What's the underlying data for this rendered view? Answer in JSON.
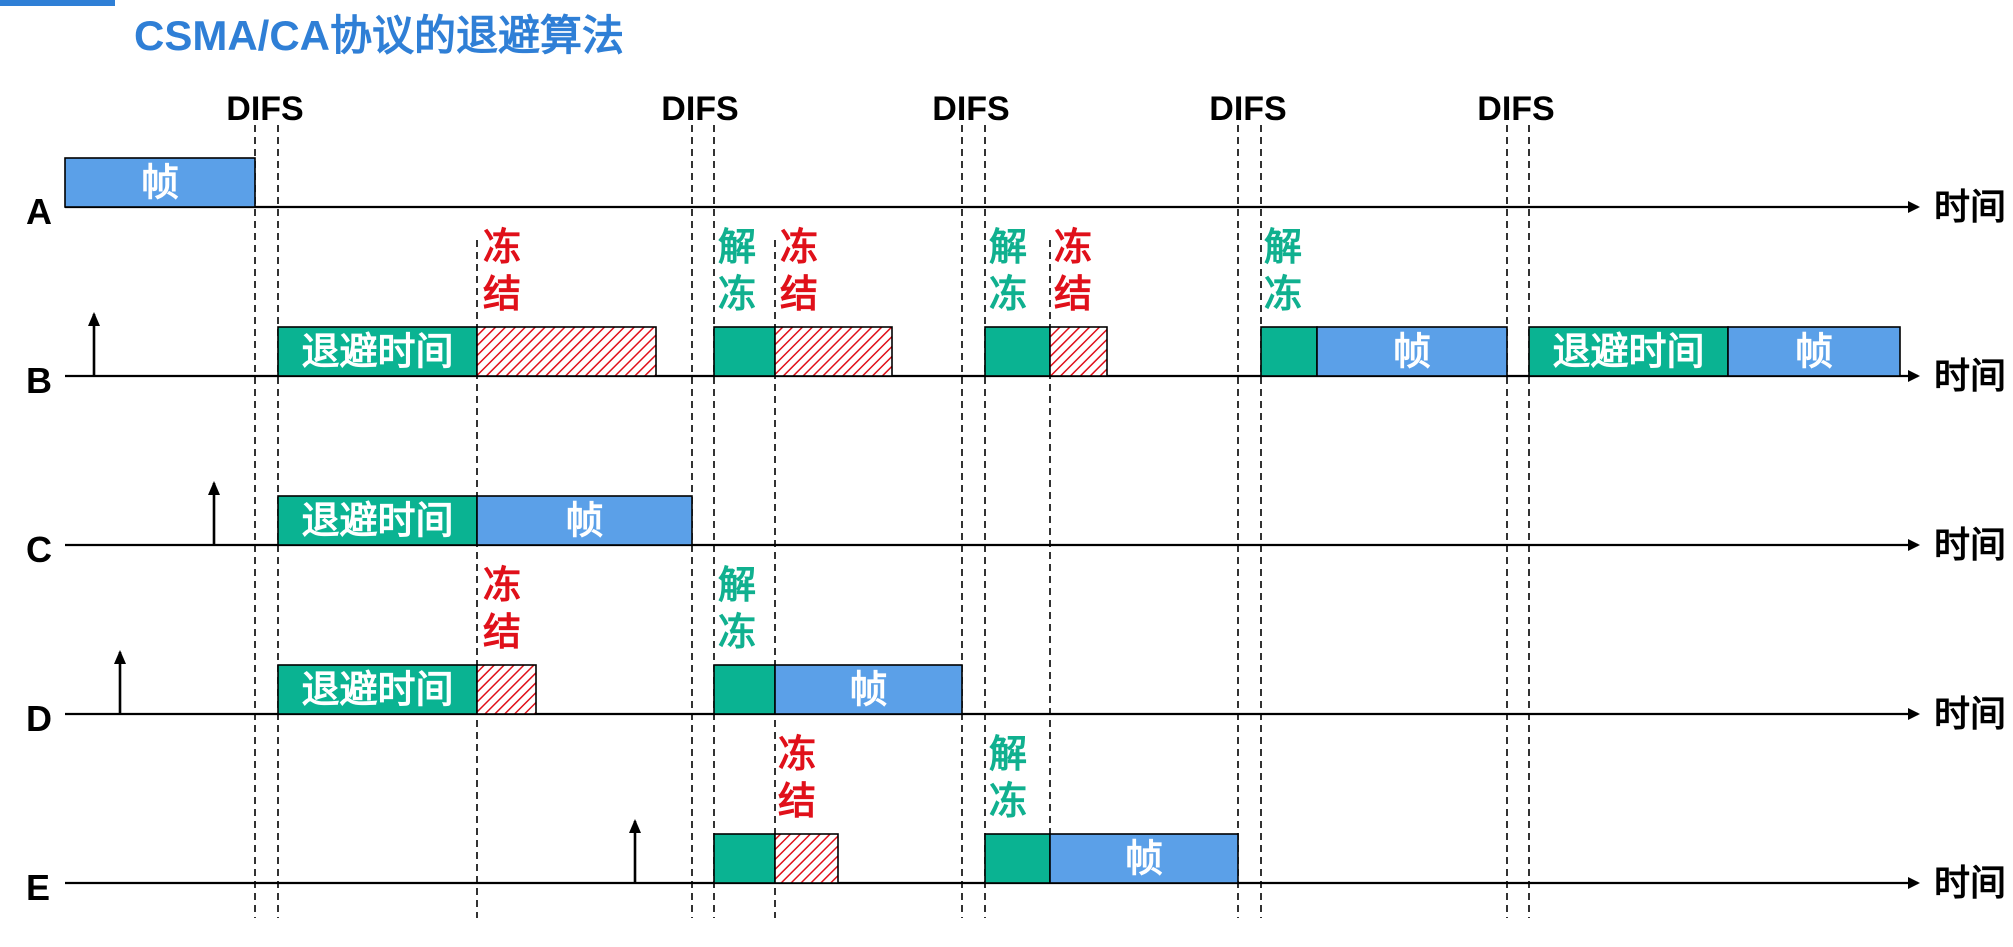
{
  "title": "CSMA/CA协议的退避算法",
  "difs_label": "DIFS",
  "time_label": "时间",
  "labels": {
    "frame": "帧",
    "backoff": "退避时间",
    "freeze": [
      "冻",
      "结"
    ],
    "unfreeze": [
      "解",
      "冻"
    ]
  },
  "colors": {
    "frame": "#5ba0e8",
    "backoff": "#0ab392",
    "freeze_hatch": "#e0101a",
    "freeze_text": "#e0101a",
    "unfreeze_text": "#10b08f",
    "title": "#2f7fd6",
    "accent_bar": "#2f7fd6"
  },
  "stations": [
    {
      "name": "A",
      "key": "A"
    },
    {
      "name": "B",
      "key": "B"
    },
    {
      "name": "C",
      "key": "C"
    },
    {
      "name": "D",
      "key": "D"
    },
    {
      "name": "E",
      "key": "E"
    }
  ]
}
